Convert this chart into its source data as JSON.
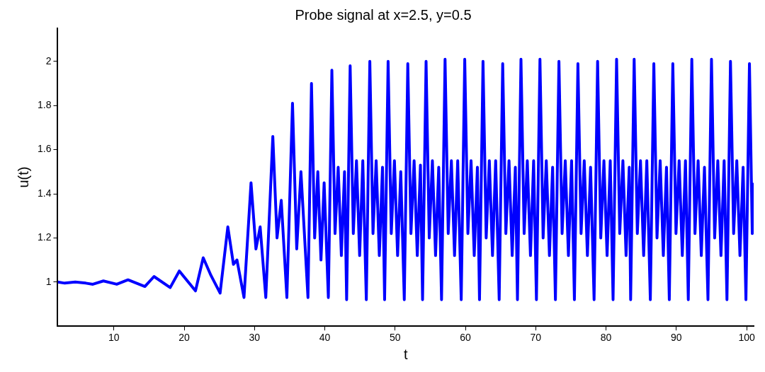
{
  "chart_data": {
    "type": "line",
    "title": "Probe signal at x=2.5, y=0.5",
    "xlabel": "t",
    "ylabel": "u(t)",
    "xlim": [
      2,
      101
    ],
    "ylim": [
      0.8,
      2.15
    ],
    "xticks": [
      10,
      20,
      30,
      40,
      50,
      60,
      70,
      80,
      90,
      100
    ],
    "yticks": [
      1,
      1.2,
      1.4,
      1.6,
      1.8,
      2
    ],
    "grid": false,
    "legend": false,
    "series": [
      {
        "color": "#0000ff",
        "x": [
          2,
          3,
          4.5,
          6,
          7,
          8.5,
          10.4,
          12,
          14.4,
          15.7,
          18,
          19.3,
          21.6,
          22.7,
          23.8,
          25.1,
          26.2,
          27.0,
          27.5,
          28.5,
          29.5,
          30.2,
          30.8,
          31.6,
          32.6,
          33.2,
          33.8,
          34.6,
          35.4,
          36.0,
          36.6,
          37.6,
          38.1,
          38.55,
          39.0,
          39.45,
          39.9,
          40.5,
          41.0,
          41.45,
          41.9,
          42.35,
          42.8,
          43.1,
          43.6,
          44.05,
          44.5,
          44.95,
          45.4,
          45.9,
          46.4,
          46.85,
          47.3,
          47.75,
          48.2,
          48.5,
          49.0,
          49.45,
          49.9,
          50.35,
          50.8,
          51.3,
          51.8,
          52.25,
          52.7,
          53.15,
          53.6,
          53.9,
          54.4,
          54.85,
          55.3,
          55.75,
          56.2,
          56.6,
          57.1,
          57.55,
          58.0,
          58.45,
          58.9,
          59.4,
          59.9,
          60.35,
          60.8,
          61.25,
          61.7,
          62.0,
          62.5,
          62.95,
          63.4,
          63.85,
          64.3,
          64.8,
          65.3,
          65.75,
          66.2,
          66.65,
          67.1,
          67.4,
          67.9,
          68.35,
          68.8,
          69.25,
          69.7,
          70.1,
          70.6,
          71.05,
          71.5,
          71.95,
          72.4,
          72.8,
          73.3,
          73.75,
          74.2,
          74.65,
          75.1,
          75.5,
          76.0,
          76.45,
          76.9,
          77.35,
          77.8,
          78.3,
          78.8,
          79.25,
          79.7,
          80.15,
          80.6,
          81.0,
          81.5,
          81.95,
          82.4,
          82.85,
          83.3,
          83.5,
          84.0,
          84.45,
          84.9,
          85.35,
          85.8,
          86.3,
          86.8,
          87.25,
          87.7,
          88.15,
          88.6,
          89.0,
          89.5,
          89.95,
          90.4,
          90.85,
          91.3,
          91.7,
          92.2,
          92.65,
          93.1,
          93.55,
          94.0,
          94.5,
          95.0,
          95.45,
          95.9,
          96.35,
          96.8,
          97.2,
          97.7,
          98.15,
          98.6,
          99.05,
          99.5,
          99.9,
          100.4,
          100.8,
          101.0
        ],
        "values": [
          1.0,
          0.995,
          1.0,
          0.995,
          0.99,
          1.005,
          0.99,
          1.01,
          0.98,
          1.025,
          0.975,
          1.05,
          0.96,
          1.11,
          1.03,
          0.95,
          1.25,
          1.08,
          1.1,
          0.93,
          1.45,
          1.15,
          1.25,
          0.93,
          1.66,
          1.2,
          1.37,
          0.93,
          1.81,
          1.15,
          1.5,
          0.93,
          1.9,
          1.2,
          1.5,
          1.1,
          1.45,
          0.93,
          1.96,
          1.22,
          1.52,
          1.12,
          1.5,
          0.92,
          1.98,
          1.22,
          1.55,
          1.12,
          1.55,
          0.92,
          2.0,
          1.22,
          1.55,
          1.12,
          1.52,
          0.92,
          2.0,
          1.22,
          1.55,
          1.12,
          1.5,
          0.92,
          1.99,
          1.22,
          1.55,
          1.12,
          1.53,
          0.92,
          2.0,
          1.2,
          1.55,
          1.12,
          1.52,
          0.92,
          2.01,
          1.22,
          1.55,
          1.12,
          1.55,
          0.92,
          2.01,
          1.22,
          1.55,
          1.12,
          1.52,
          0.92,
          2.0,
          1.2,
          1.55,
          1.12,
          1.55,
          0.92,
          1.99,
          1.22,
          1.55,
          1.12,
          1.52,
          0.92,
          2.01,
          1.22,
          1.55,
          1.12,
          1.55,
          0.92,
          2.01,
          1.2,
          1.55,
          1.12,
          1.52,
          0.92,
          2.0,
          1.22,
          1.55,
          1.12,
          1.55,
          0.92,
          1.99,
          1.22,
          1.55,
          1.12,
          1.52,
          0.92,
          2.0,
          1.2,
          1.55,
          1.12,
          1.55,
          0.92,
          2.01,
          1.22,
          1.55,
          1.12,
          1.52,
          0.92,
          2.01,
          1.22,
          1.55,
          1.12,
          1.55,
          0.92,
          1.99,
          1.2,
          1.55,
          1.12,
          1.52,
          0.92,
          1.99,
          1.22,
          1.55,
          1.12,
          1.55,
          0.92,
          2.01,
          1.22,
          1.55,
          1.12,
          1.52,
          0.92,
          2.01,
          1.2,
          1.55,
          1.12,
          1.55,
          0.92,
          2.0,
          1.22,
          1.55,
          1.12,
          1.52,
          0.92,
          1.99,
          1.22,
          1.45
        ]
      }
    ]
  }
}
